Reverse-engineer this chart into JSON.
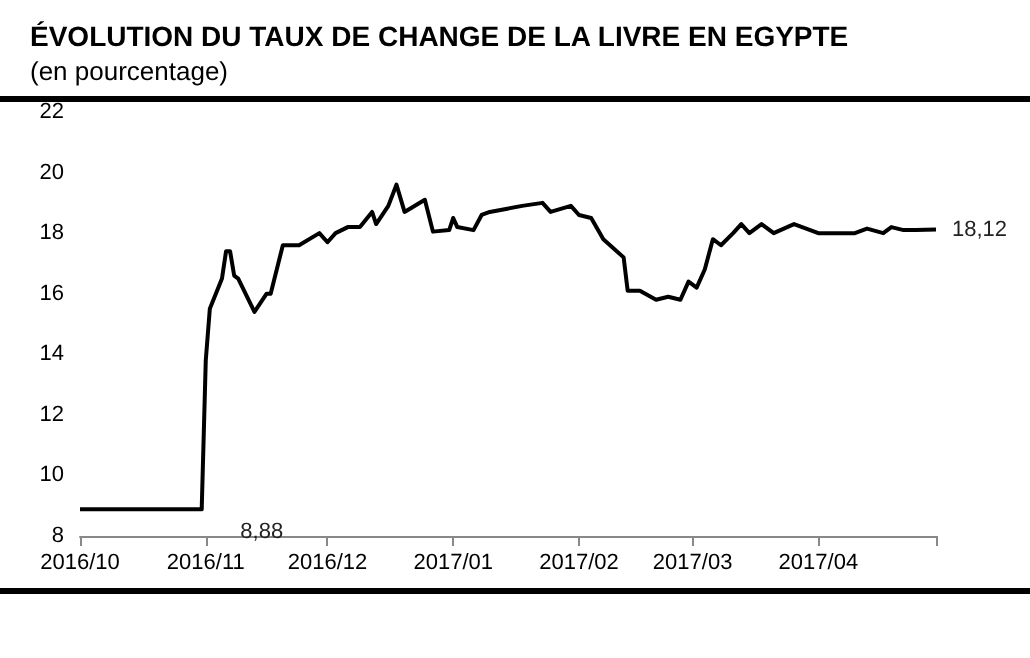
{
  "chart_data": {
    "type": "line",
    "title": "ÉVOLUTION DU TAUX DE CHANGE DE LA LIVRE EN EGYPTE",
    "subtitle": "(en pourcentage)",
    "x": [
      "2016-10-01",
      "2016-10-31",
      "2016-11-01",
      "2016-11-02",
      "2016-11-05",
      "2016-11-06",
      "2016-11-07",
      "2016-11-08",
      "2016-11-09",
      "2016-11-13",
      "2016-11-16",
      "2016-11-17",
      "2016-11-20",
      "2016-11-22",
      "2016-11-24",
      "2016-11-29",
      "2016-12-01",
      "2016-12-03",
      "2016-12-06",
      "2016-12-09",
      "2016-12-12",
      "2016-12-13",
      "2016-12-16",
      "2016-12-18",
      "2016-12-20",
      "2016-12-25",
      "2016-12-27",
      "2016-12-31",
      "2017-01-01",
      "2017-01-02",
      "2017-01-06",
      "2017-01-08",
      "2017-01-10",
      "2017-01-14",
      "2017-01-18",
      "2017-01-23",
      "2017-01-25",
      "2017-01-30",
      "2017-02-01",
      "2017-02-04",
      "2017-02-07",
      "2017-02-12",
      "2017-02-13",
      "2017-02-16",
      "2017-02-20",
      "2017-02-23",
      "2017-02-26",
      "2017-02-28",
      "2017-03-02",
      "2017-03-04",
      "2017-03-06",
      "2017-03-08",
      "2017-03-11",
      "2017-03-13",
      "2017-03-15",
      "2017-03-18",
      "2017-03-21",
      "2017-03-26",
      "2017-04-01",
      "2017-04-10",
      "2017-04-13",
      "2017-04-17",
      "2017-04-19",
      "2017-04-22",
      "2017-04-25",
      "2017-04-30"
    ],
    "series": [
      {
        "color": "#000000",
        "values": [
          8.88,
          8.88,
          13.8,
          15.5,
          16.5,
          17.4,
          17.4,
          16.6,
          16.5,
          15.4,
          16.0,
          16.0,
          17.6,
          17.6,
          17.6,
          18.0,
          17.7,
          18.0,
          18.2,
          18.2,
          18.7,
          18.3,
          18.9,
          19.6,
          18.7,
          19.1,
          18.05,
          18.1,
          18.5,
          18.2,
          18.1,
          18.6,
          18.7,
          18.8,
          18.9,
          19.0,
          18.7,
          18.9,
          18.6,
          18.5,
          17.8,
          17.2,
          16.1,
          16.1,
          15.8,
          15.9,
          15.8,
          16.4,
          16.2,
          16.8,
          17.8,
          17.6,
          18.0,
          18.3,
          18.0,
          18.3,
          18.0,
          18.3,
          18.0,
          18.0,
          18.15,
          18.0,
          18.2,
          18.1,
          18.1,
          18.12
        ],
        "value_labels": [
          null,
          "8,88",
          null,
          null,
          null,
          null,
          null,
          null,
          null,
          null,
          null,
          null,
          null,
          null,
          null,
          null,
          null,
          null,
          null,
          null,
          null,
          null,
          null,
          null,
          null,
          null,
          null,
          null,
          null,
          null,
          null,
          null,
          null,
          null,
          null,
          null,
          null,
          null,
          null,
          null,
          null,
          null,
          null,
          null,
          null,
          null,
          null,
          null,
          null,
          null,
          null,
          null,
          null,
          null,
          null,
          null,
          null,
          null,
          null,
          null,
          null,
          null,
          null,
          null,
          null,
          "18,12"
        ]
      }
    ],
    "xlim": [
      "2016-10-01",
      "2017-04-30"
    ],
    "xticks": [
      {
        "value": "2016-10-01",
        "label": "2016/10"
      },
      {
        "value": "2016-11-01",
        "label": "2016/11"
      },
      {
        "value": "2016-12-01",
        "label": "2016/12"
      },
      {
        "value": "2017-01-01",
        "label": "2017/01"
      },
      {
        "value": "2017-02-01",
        "label": "2017/02"
      },
      {
        "value": "2017-03-01",
        "label": "2017/03"
      },
      {
        "value": "2017-04-01",
        "label": "2017/04"
      },
      {
        "value": "2017-04-30",
        "label": null
      }
    ],
    "ylim": [
      8,
      22
    ],
    "yticks": [
      8,
      10,
      12,
      14,
      16,
      18,
      20,
      22
    ],
    "grid": false,
    "marker": "none",
    "line_style": "solid"
  }
}
